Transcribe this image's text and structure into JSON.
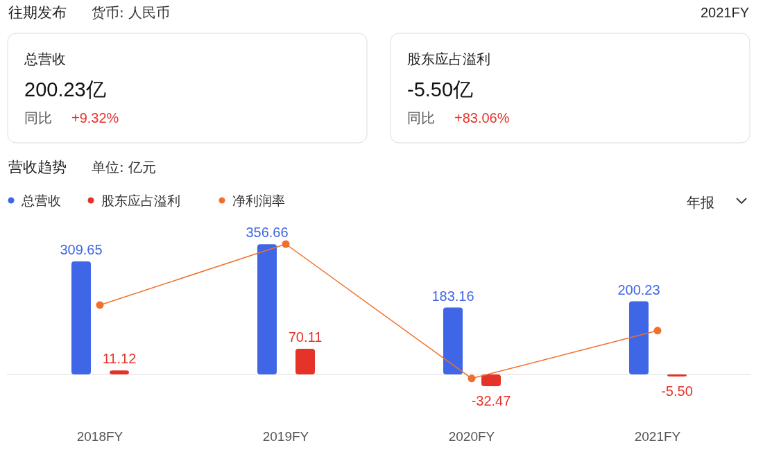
{
  "chart_data": [
    {
      "type": "other",
      "title": "往期发布",
      "subtitle": "货币: 人民币",
      "annotations": [
        "2021FY",
        "总营收",
        "200.23亿",
        "同比",
        "+9.32%",
        "股东应占溢利",
        "-5.50亿",
        "同比",
        "+83.06%"
      ]
    },
    {
      "type": "bar",
      "title": "营收趋势",
      "subtitle": "单位: 亿元",
      "categories": [
        "2018FY",
        "2019FY",
        "2020FY",
        "2021FY"
      ],
      "tick_labels": "x",
      "legend": "top left",
      "annotations": [
        "年报"
      ],
      "series": [
        {
          "name": "总营收",
          "color": "#3f66e6",
          "values": [
            309.65,
            356.66,
            183.16,
            200.23
          ],
          "value_labels": [
            "309.65",
            "356.66",
            "183.16",
            "200.23"
          ]
        },
        {
          "name": "股东应占溢利",
          "color": "#e5332a",
          "values": [
            11.12,
            70.11,
            -32.47,
            -5.5
          ],
          "value_labels": [
            "11.12",
            "70.11",
            "-32.47",
            "-5.50"
          ]
        },
        {
          "name": "净利润率",
          "type": "line",
          "color": "#f0702a",
          "marker": "circle",
          "values": [
            190,
            357,
            -11,
            120
          ]
        }
      ]
    }
  ]
}
